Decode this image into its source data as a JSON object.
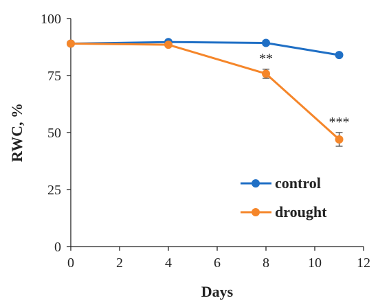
{
  "chart_data": {
    "type": "line",
    "xlabel": "Days",
    "ylabel": "RWC, %",
    "xlim": [
      0,
      12
    ],
    "ylim": [
      0,
      100
    ],
    "xticks": [
      0,
      2,
      4,
      6,
      8,
      10,
      12
    ],
    "yticks": [
      0,
      25,
      50,
      75,
      100
    ],
    "grid": false,
    "legend_position": "bottom-right",
    "series": [
      {
        "name": "control",
        "color": "#1f6fc5",
        "x": [
          0,
          4,
          8,
          11
        ],
        "y": [
          89,
          89.7,
          89.3,
          84
        ],
        "error": [
          0,
          0,
          0,
          0
        ],
        "annotations": [
          "",
          "",
          "",
          ""
        ]
      },
      {
        "name": "drought",
        "color": "#f5862a",
        "x": [
          0,
          4,
          8,
          11
        ],
        "y": [
          89,
          88.5,
          75.8,
          47
        ],
        "error": [
          0,
          0,
          2,
          3
        ],
        "annotations": [
          "",
          "",
          "**",
          "***"
        ]
      }
    ]
  }
}
